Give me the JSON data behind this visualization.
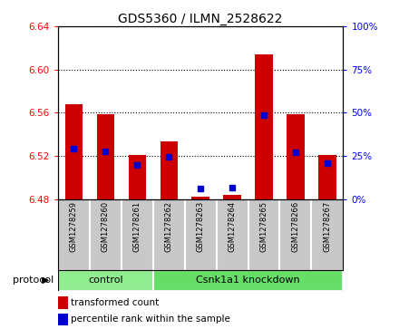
{
  "title": "GDS5360 / ILMN_2528622",
  "samples": [
    "GSM1278259",
    "GSM1278260",
    "GSM1278261",
    "GSM1278262",
    "GSM1278263",
    "GSM1278264",
    "GSM1278265",
    "GSM1278266",
    "GSM1278267"
  ],
  "red_values": [
    6.568,
    6.559,
    6.521,
    6.533,
    6.482,
    6.484,
    6.614,
    6.559,
    6.521
  ],
  "blue_values": [
    6.527,
    6.524,
    6.512,
    6.519,
    6.49,
    6.491,
    6.558,
    6.523,
    6.513
  ],
  "ylim": [
    6.48,
    6.64
  ],
  "yticks_left": [
    6.48,
    6.52,
    6.56,
    6.6,
    6.64
  ],
  "yticks_right": [
    0,
    25,
    50,
    75,
    100
  ],
  "bar_bottom": 6.48,
  "ctrl_color": "#90EE90",
  "kd_color": "#66DD66",
  "protocol_label": "protocol",
  "red_color": "#CC0000",
  "blue_color": "#0000CC",
  "bar_width": 0.55,
  "marker_size": 4,
  "ctrl_count": 3,
  "kd_count": 6,
  "ctrl_label": "control",
  "kd_label": "Csnk1a1 knockdown",
  "legend_label_red": "transformed count",
  "legend_label_blue": "percentile rank within the sample",
  "label_gray": "#C8C8C8",
  "label_sep_color": "#FFFFFF"
}
